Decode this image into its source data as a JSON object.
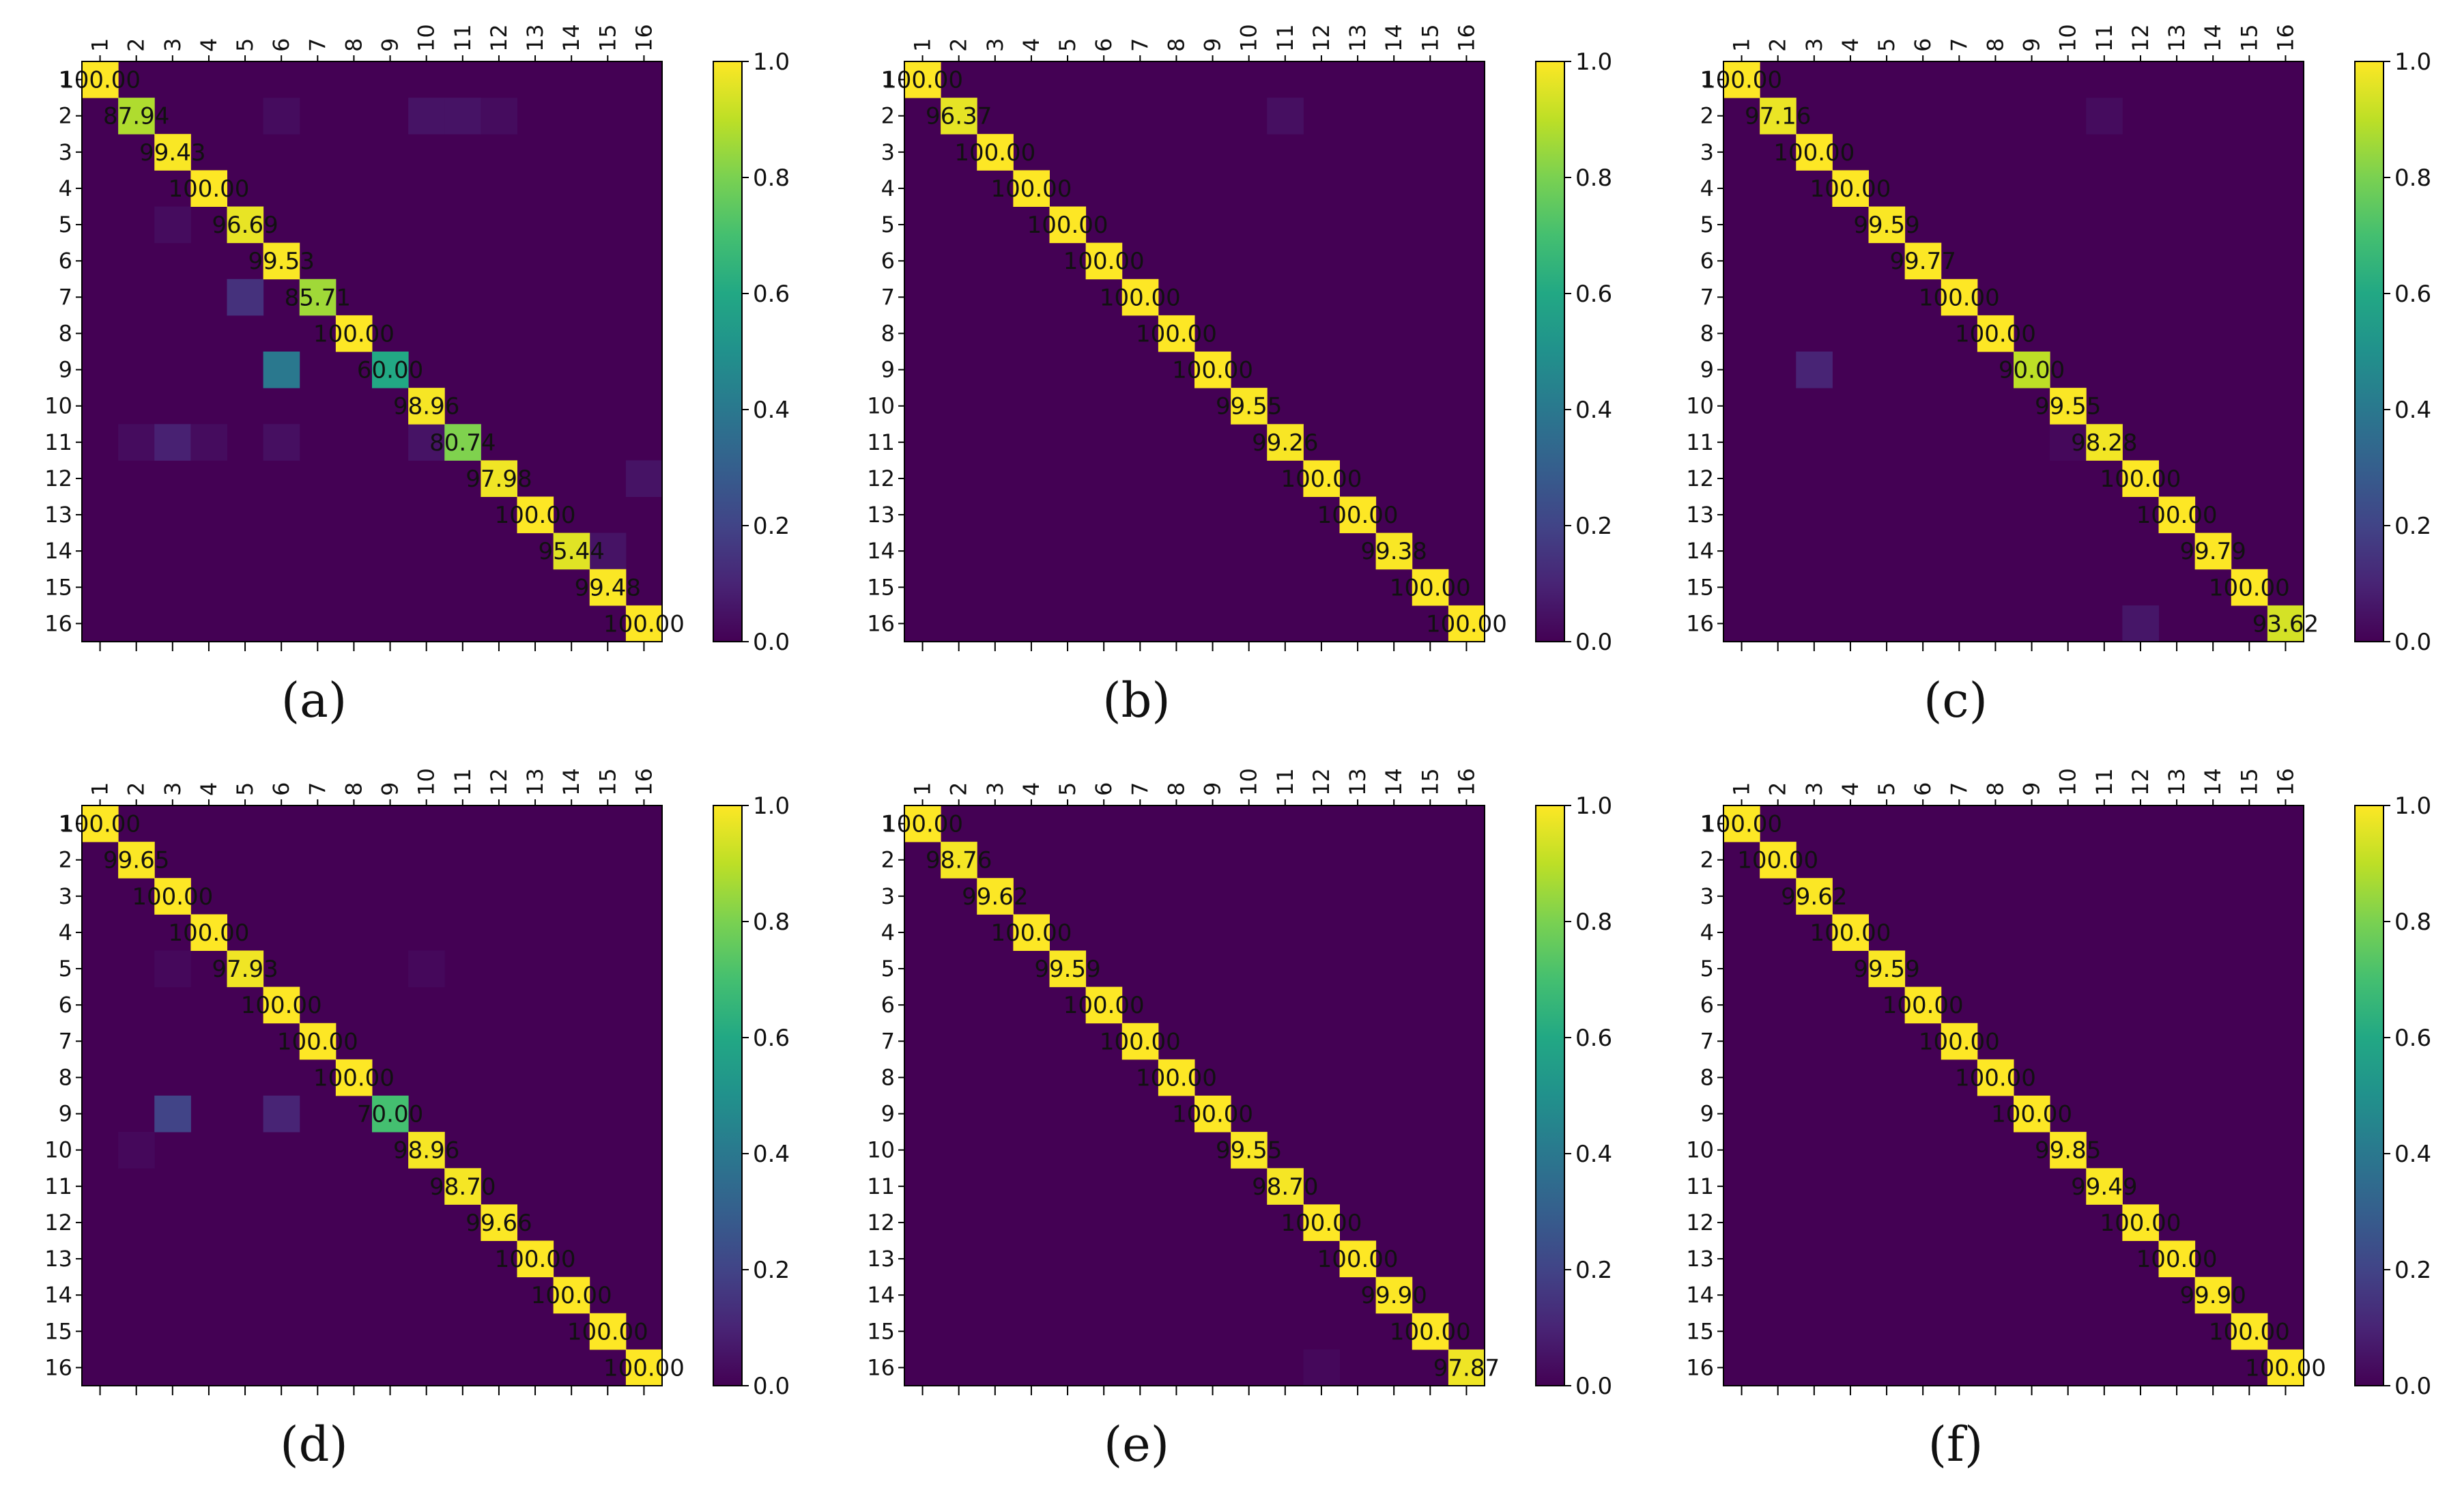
{
  "figure": {
    "layout": "grid 2 rows x 3 columns",
    "colormap": "viridis",
    "matrix_background_color": "#440154",
    "diagonal_color": "#fde725"
  },
  "chart_data": [
    {
      "type": "heatmap",
      "caption": "(a)",
      "row_labels": [
        "1",
        "2",
        "3",
        "4",
        "5",
        "6",
        "7",
        "8",
        "9",
        "10",
        "11",
        "12",
        "13",
        "14",
        "15",
        "16"
      ],
      "col_labels": [
        "1",
        "2",
        "3",
        "4",
        "5",
        "6",
        "7",
        "8",
        "9",
        "10",
        "11",
        "12",
        "13",
        "14",
        "15",
        "16"
      ],
      "diagonal_labels": [
        "100.00",
        "87.94",
        "99.43",
        "100.00",
        "96.69",
        "99.53",
        "85.71",
        "100.00",
        "60.00",
        "98.96",
        "80.74",
        "97.98",
        "100.00",
        "95.44",
        "99.48",
        "100.00"
      ],
      "diagonal_values": [
        1.0,
        0.8794,
        0.9943,
        1.0,
        0.9669,
        0.9953,
        0.8571,
        1.0,
        0.6,
        0.9896,
        0.8074,
        0.9798,
        1.0,
        0.9544,
        0.9948,
        1.0
      ],
      "off_diagonal": [
        {
          "row": 2,
          "col": 6,
          "value": 0.03
        },
        {
          "row": 2,
          "col": 10,
          "value": 0.05
        },
        {
          "row": 2,
          "col": 11,
          "value": 0.05
        },
        {
          "row": 2,
          "col": 12,
          "value": 0.03
        },
        {
          "row": 5,
          "col": 3,
          "value": 0.03
        },
        {
          "row": 7,
          "col": 5,
          "value": 0.14
        },
        {
          "row": 9,
          "col": 6,
          "value": 0.4
        },
        {
          "row": 11,
          "col": 2,
          "value": 0.03
        },
        {
          "row": 11,
          "col": 3,
          "value": 0.09
        },
        {
          "row": 11,
          "col": 4,
          "value": 0.03
        },
        {
          "row": 11,
          "col": 6,
          "value": 0.04
        },
        {
          "row": 11,
          "col": 10,
          "value": 0.05
        },
        {
          "row": 12,
          "col": 16,
          "value": 0.05
        },
        {
          "row": 14,
          "col": 15,
          "value": 0.05
        }
      ],
      "colorbar": {
        "range": [
          0.0,
          1.0
        ],
        "ticks": [
          "0.0",
          "0.2",
          "0.4",
          "0.6",
          "0.8",
          "1.0"
        ]
      }
    },
    {
      "type": "heatmap",
      "caption": "(b)",
      "row_labels": [
        "1",
        "2",
        "3",
        "4",
        "5",
        "6",
        "7",
        "8",
        "9",
        "10",
        "11",
        "12",
        "13",
        "14",
        "15",
        "16"
      ],
      "col_labels": [
        "1",
        "2",
        "3",
        "4",
        "5",
        "6",
        "7",
        "8",
        "9",
        "10",
        "11",
        "12",
        "13",
        "14",
        "15",
        "16"
      ],
      "diagonal_labels": [
        "100.00",
        "96.37",
        "100.00",
        "100.00",
        "100.00",
        "100.00",
        "100.00",
        "100.00",
        "100.00",
        "99.55",
        "99.26",
        "100.00",
        "100.00",
        "99.38",
        "100.00",
        "100.00"
      ],
      "diagonal_values": [
        1.0,
        0.9637,
        1.0,
        1.0,
        1.0,
        1.0,
        1.0,
        1.0,
        1.0,
        0.9955,
        0.9926,
        1.0,
        1.0,
        0.9938,
        1.0,
        1.0
      ],
      "off_diagonal": [
        {
          "row": 2,
          "col": 11,
          "value": 0.04
        }
      ],
      "colorbar": {
        "range": [
          0.0,
          1.0
        ],
        "ticks": [
          "0.0",
          "0.2",
          "0.4",
          "0.6",
          "0.8",
          "1.0"
        ]
      }
    },
    {
      "type": "heatmap",
      "caption": "(c)",
      "row_labels": [
        "1",
        "2",
        "3",
        "4",
        "5",
        "6",
        "7",
        "8",
        "9",
        "10",
        "11",
        "12",
        "13",
        "14",
        "15",
        "16"
      ],
      "col_labels": [
        "1",
        "2",
        "3",
        "4",
        "5",
        "6",
        "7",
        "8",
        "9",
        "10",
        "11",
        "12",
        "13",
        "14",
        "15",
        "16"
      ],
      "diagonal_labels": [
        "100.00",
        "97.16",
        "100.00",
        "100.00",
        "99.59",
        "99.77",
        "100.00",
        "100.00",
        "90.00",
        "99.55",
        "98.28",
        "100.00",
        "100.00",
        "99.79",
        "100.00",
        "93.62"
      ],
      "diagonal_values": [
        1.0,
        0.9716,
        1.0,
        1.0,
        0.9959,
        0.9977,
        1.0,
        1.0,
        0.9,
        0.9955,
        0.9828,
        1.0,
        1.0,
        0.9979,
        1.0,
        0.9362
      ],
      "off_diagonal": [
        {
          "row": 2,
          "col": 11,
          "value": 0.03
        },
        {
          "row": 9,
          "col": 3,
          "value": 0.1
        },
        {
          "row": 11,
          "col": 10,
          "value": 0.02
        },
        {
          "row": 16,
          "col": 12,
          "value": 0.06
        }
      ],
      "colorbar": {
        "range": [
          0.0,
          1.0
        ],
        "ticks": [
          "0.0",
          "0.2",
          "0.4",
          "0.6",
          "0.8",
          "1.0"
        ]
      }
    },
    {
      "type": "heatmap",
      "caption": "(d)",
      "row_labels": [
        "1",
        "2",
        "3",
        "4",
        "5",
        "6",
        "7",
        "8",
        "9",
        "10",
        "11",
        "12",
        "13",
        "14",
        "15",
        "16"
      ],
      "col_labels": [
        "1",
        "2",
        "3",
        "4",
        "5",
        "6",
        "7",
        "8",
        "9",
        "10",
        "11",
        "12",
        "13",
        "14",
        "15",
        "16"
      ],
      "diagonal_labels": [
        "100.00",
        "99.65",
        "100.00",
        "100.00",
        "97.93",
        "100.00",
        "100.00",
        "100.00",
        "70.00",
        "98.96",
        "98.70",
        "99.66",
        "100.00",
        "100.00",
        "100.00",
        "100.00"
      ],
      "diagonal_values": [
        1.0,
        0.9965,
        1.0,
        1.0,
        0.9793,
        1.0,
        1.0,
        1.0,
        0.7,
        0.9896,
        0.987,
        0.9966,
        1.0,
        1.0,
        1.0,
        1.0
      ],
      "off_diagonal": [
        {
          "row": 5,
          "col": 3,
          "value": 0.02
        },
        {
          "row": 5,
          "col": 10,
          "value": 0.02
        },
        {
          "row": 9,
          "col": 3,
          "value": 0.2
        },
        {
          "row": 9,
          "col": 6,
          "value": 0.1
        },
        {
          "row": 10,
          "col": 2,
          "value": 0.02
        }
      ],
      "colorbar": {
        "range": [
          0.0,
          1.0
        ],
        "ticks": [
          "0.0",
          "0.2",
          "0.4",
          "0.6",
          "0.8",
          "1.0"
        ]
      }
    },
    {
      "type": "heatmap",
      "caption": "(e)",
      "row_labels": [
        "1",
        "2",
        "3",
        "4",
        "5",
        "6",
        "7",
        "8",
        "9",
        "10",
        "11",
        "12",
        "13",
        "14",
        "15",
        "16"
      ],
      "col_labels": [
        "1",
        "2",
        "3",
        "4",
        "5",
        "6",
        "7",
        "8",
        "9",
        "10",
        "11",
        "12",
        "13",
        "14",
        "15",
        "16"
      ],
      "diagonal_labels": [
        "100.00",
        "98.76",
        "99.62",
        "100.00",
        "99.59",
        "100.00",
        "100.00",
        "100.00",
        "100.00",
        "99.55",
        "98.70",
        "100.00",
        "100.00",
        "99.90",
        "100.00",
        "97.87"
      ],
      "diagonal_values": [
        1.0,
        0.9876,
        0.9962,
        1.0,
        0.9959,
        1.0,
        1.0,
        1.0,
        1.0,
        0.9955,
        0.987,
        1.0,
        1.0,
        0.999,
        1.0,
        0.9787
      ],
      "off_diagonal": [
        {
          "row": 16,
          "col": 12,
          "value": 0.02
        }
      ],
      "colorbar": {
        "range": [
          0.0,
          1.0
        ],
        "ticks": [
          "0.0",
          "0.2",
          "0.4",
          "0.6",
          "0.8",
          "1.0"
        ]
      }
    },
    {
      "type": "heatmap",
      "caption": "(f)",
      "row_labels": [
        "1",
        "2",
        "3",
        "4",
        "5",
        "6",
        "7",
        "8",
        "9",
        "10",
        "11",
        "12",
        "13",
        "14",
        "15",
        "16"
      ],
      "col_labels": [
        "1",
        "2",
        "3",
        "4",
        "5",
        "6",
        "7",
        "8",
        "9",
        "10",
        "11",
        "12",
        "13",
        "14",
        "15",
        "16"
      ],
      "diagonal_labels": [
        "100.00",
        "100.00",
        "99.62",
        "100.00",
        "99.59",
        "100.00",
        "100.00",
        "100.00",
        "100.00",
        "99.85",
        "99.49",
        "100.00",
        "100.00",
        "99.90",
        "100.00",
        "100.00"
      ],
      "diagonal_values": [
        1.0,
        1.0,
        0.9962,
        1.0,
        0.9959,
        1.0,
        1.0,
        1.0,
        1.0,
        0.9985,
        0.9949,
        1.0,
        1.0,
        0.999,
        1.0,
        1.0
      ],
      "off_diagonal": [],
      "colorbar": {
        "range": [
          0.0,
          1.0
        ],
        "ticks": [
          "0.0",
          "0.2",
          "0.4",
          "0.6",
          "0.8",
          "1.0"
        ]
      }
    }
  ]
}
